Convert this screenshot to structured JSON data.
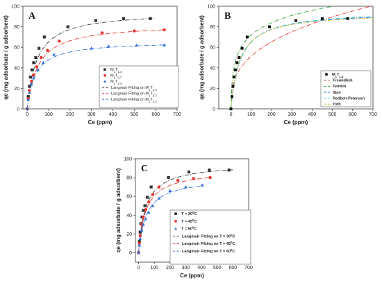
{
  "chart_data": [
    {
      "type": "scatter",
      "panel_label": "A",
      "xlabel": "Ce (ppm)",
      "ylabel": "qe (mg adsorbate / g adsorbent)",
      "xlim": [
        -20,
        700
      ],
      "ylim": [
        0,
        100
      ],
      "xticks": [
        0,
        100,
        200,
        300,
        400,
        500,
        600,
        700
      ],
      "yticks": [
        0,
        20,
        40,
        60,
        80,
        100
      ],
      "legend_position": "lower-right",
      "series": [
        {
          "name": "M1T1.4",
          "base": "M",
          "sub1": "1",
          "mid": "T",
          "sub2": "1.4",
          "marker": "square",
          "color": "#333333",
          "x": [
            0,
            5,
            10,
            15,
            22,
            30,
            40,
            55,
            80,
            190,
            320,
            450,
            575
          ],
          "y": [
            0,
            12,
            22,
            31,
            38,
            45,
            50,
            59,
            70,
            80,
            86,
            88,
            88
          ]
        },
        {
          "name": "M1T0.7",
          "base": "M",
          "sub1": "1",
          "mid": "T",
          "sub2": "0.7",
          "marker": "circle",
          "color": "#e8322d",
          "x": [
            0,
            5,
            10,
            20,
            30,
            45,
            65,
            95,
            150,
            350,
            500,
            640
          ],
          "y": [
            0,
            10,
            18,
            27,
            33,
            41,
            50,
            57,
            66,
            74,
            76,
            77
          ]
        },
        {
          "name": "M1T2.4",
          "base": "M",
          "sub1": "1",
          "mid": "T",
          "sub2": "2.4",
          "marker": "triangle",
          "color": "#2f6fd6",
          "x": [
            0,
            5,
            10,
            20,
            30,
            50,
            75,
            125,
            300,
            380,
            510,
            640
          ],
          "y": [
            0,
            9,
            16,
            24,
            30,
            38,
            45,
            53,
            59,
            61,
            62,
            62
          ]
        }
      ],
      "fits": [
        {
          "name": "Langmuir Fitting on M1T1.4",
          "text": "Langmuir Fitting on M",
          "sub1": "1",
          "mid": "T",
          "sub2": "1.4",
          "color": "#333333",
          "dash": "6,2,1,2",
          "qmax": 95,
          "K": 0.022,
          "xmax": 600
        },
        {
          "name": "Langmuir Fitting on M1T0.7",
          "text": "Langmuir Fitting on M",
          "sub1": "1",
          "mid": "T",
          "sub2": "0.7",
          "color": "#e8322d",
          "dash": "6,2,1,2",
          "qmax": 83,
          "K": 0.02,
          "xmax": 650
        },
        {
          "name": "Langmuir Fitting on M1T2.4",
          "text": "Langmuir Fitting on M",
          "sub1": "1",
          "mid": "T",
          "sub2": "2.4",
          "color": "#2f6fd6",
          "dash": "6,2,1,2",
          "qmax": 66,
          "K": 0.026,
          "xmax": 650
        }
      ]
    },
    {
      "type": "scatter",
      "panel_label": "B",
      "xlabel": "Ce (ppm)",
      "ylabel": "qe (mg adsorbate / g adsorbent)",
      "xlim": [
        -60,
        700
      ],
      "ylim": [
        0,
        100
      ],
      "xticks": [
        0,
        100,
        200,
        300,
        400,
        500,
        600,
        700
      ],
      "yticks": [
        0,
        20,
        40,
        60,
        80,
        100
      ],
      "legend_position": "lower-right",
      "series": [
        {
          "name": "M1T1.4",
          "base": "M",
          "sub1": "1",
          "mid": "T",
          "sub2": "1.4",
          "marker": "square",
          "color": "#111111",
          "x": [
            0,
            5,
            10,
            15,
            22,
            30,
            40,
            55,
            80,
            190,
            320,
            450,
            575
          ],
          "y": [
            0,
            12,
            22,
            31,
            38,
            45,
            50,
            59,
            70,
            80,
            86,
            88,
            88
          ]
        }
      ],
      "models": [
        {
          "name": "Freundlich",
          "color": "#e8322d",
          "dash": "6,2,1,2",
          "kind": "freundlich",
          "Kf": 10.5,
          "n": 2.9
        },
        {
          "name": "Temkin",
          "color": "#2e9e3a",
          "dash": "6,2,1,2",
          "kind": "temkin",
          "A": 0.6,
          "B": 17.5
        },
        {
          "name": "Sips",
          "color": "#2f6fd6",
          "dash": "6,2,1,2",
          "kind": "langmuir",
          "qmax": 95,
          "K": 0.022
        },
        {
          "name": "Redlich-Peterson",
          "color": "#25c8d8",
          "dash": "6,2,1,2",
          "kind": "langmuir",
          "qmax": 96,
          "K": 0.021
        },
        {
          "name": "Toth",
          "color": "#d6b81c",
          "dash": "3,2",
          "kind": "langmuir",
          "qmax": 94,
          "K": 0.023
        }
      ]
    },
    {
      "type": "scatter",
      "panel_label": "C",
      "xlabel": "Ce (ppm)",
      "ylabel": "qe (mg adsorbate / g adsorbent)",
      "xlim": [
        -20,
        700
      ],
      "ylim": [
        -10,
        100
      ],
      "xticks": [
        0,
        100,
        200,
        300,
        400,
        500,
        600,
        700
      ],
      "yticks": [
        0,
        20,
        40,
        60,
        80,
        100
      ],
      "legend_position": "lower-right",
      "series": [
        {
          "name": "T = 30°C",
          "text": "T = 30",
          "sup": "0",
          "unit": "C",
          "marker": "square",
          "color": "#333333",
          "x": [
            0,
            5,
            10,
            15,
            22,
            30,
            40,
            55,
            80,
            190,
            320,
            450,
            575
          ],
          "y": [
            0,
            12,
            22,
            31,
            38,
            45,
            50,
            59,
            70,
            80,
            86,
            88,
            88
          ]
        },
        {
          "name": "T = 45°C",
          "text": "T = 45",
          "sup": "0",
          "unit": "C",
          "marker": "circle",
          "color": "#e8322d",
          "x": [
            0,
            5,
            10,
            20,
            30,
            45,
            65,
            90,
            130,
            250,
            350,
            455
          ],
          "y": [
            0,
            10,
            18,
            30,
            38,
            46,
            54,
            62,
            70,
            77,
            79,
            80
          ]
        },
        {
          "name": "T = 60°C",
          "text": "T = 60",
          "sup": "0",
          "unit": "C",
          "marker": "triangle",
          "color": "#2f6fd6",
          "x": [
            0,
            5,
            10,
            20,
            30,
            45,
            65,
            90,
            130,
            200,
            300,
            405
          ],
          "y": [
            0,
            8,
            15,
            24,
            30,
            36,
            43,
            50,
            58,
            66,
            70,
            72
          ]
        }
      ],
      "fits": [
        {
          "name": "Langmuir Fitting on T = 30°C",
          "text": "Langmuir Fitting on T = 30",
          "sup": "0",
          "unit": "C",
          "color": "#333333",
          "dash": "6,2,1,2",
          "qmax": 95,
          "K": 0.022,
          "xmax": 600
        },
        {
          "name": "Langmuir Fitting on T = 45°C",
          "text": "Langmuir Fitting on T = 45",
          "sup": "0",
          "unit": "C",
          "color": "#e8322d",
          "dash": "6,2,1,2",
          "qmax": 88,
          "K": 0.022,
          "xmax": 460
        },
        {
          "name": "Langmuir Fitting on T = 60°C",
          "text": "Langmuir Fitting on T = 60",
          "sup": "0",
          "unit": "C",
          "color": "#2f6fd6",
          "dash": "6,2,1,2",
          "qmax": 80,
          "K": 0.02,
          "xmax": 410
        }
      ]
    }
  ]
}
